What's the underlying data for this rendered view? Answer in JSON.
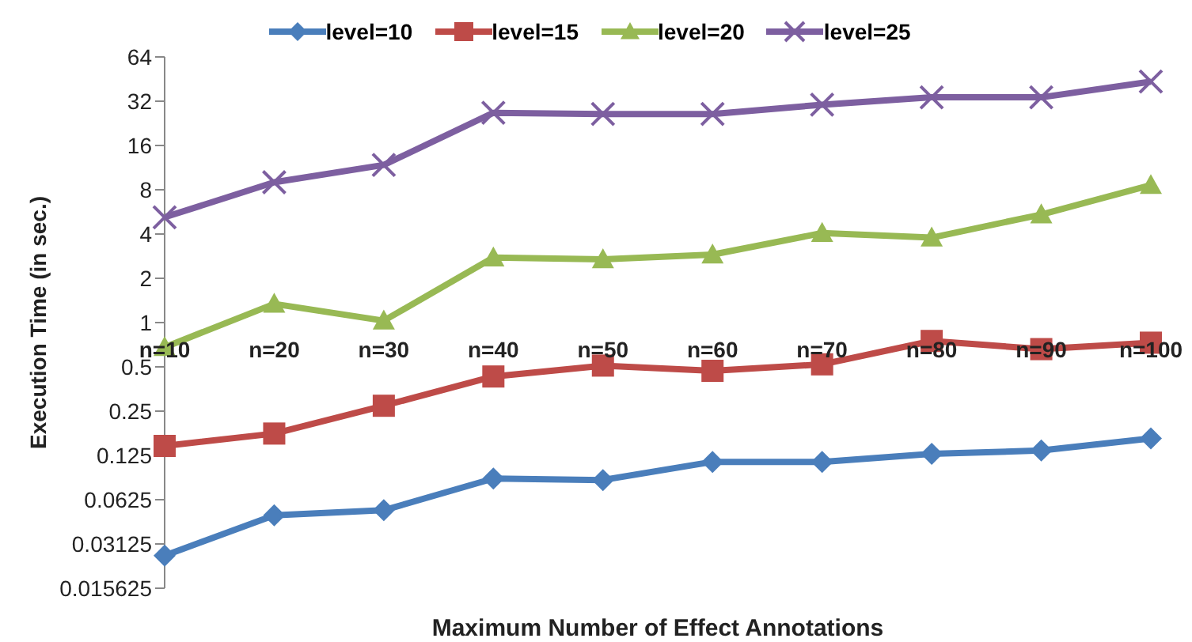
{
  "chart_data": {
    "type": "line",
    "xlabel": "Maximum Number of Effect Annotations",
    "ylabel": "Execution Time (in sec.)",
    "categories": [
      "n=10",
      "n=20",
      "n=30",
      "n=40",
      "n=50",
      "n=60",
      "n=70",
      "n=80",
      "n=90",
      "n=100"
    ],
    "log": true,
    "ylim": [
      0.015625,
      64
    ],
    "yticks": [
      0.015625,
      0.03125,
      0.0625,
      0.125,
      0.25,
      0.5,
      1,
      2,
      4,
      8,
      16,
      32,
      64
    ],
    "grid": false,
    "legend": "top",
    "series": [
      {
        "name": "level=10",
        "color": "#4a7ebb",
        "marker": "diamond",
        "values": [
          0.026,
          0.049,
          0.053,
          0.087,
          0.085,
          0.113,
          0.113,
          0.128,
          0.135,
          0.163
        ]
      },
      {
        "name": "level=15",
        "color": "#be4b48",
        "marker": "square",
        "values": [
          0.145,
          0.176,
          0.272,
          0.43,
          0.51,
          0.47,
          0.52,
          0.75,
          0.66,
          0.73
        ]
      },
      {
        "name": "level=20",
        "color": "#98b954",
        "marker": "triangle",
        "values": [
          0.68,
          1.34,
          1.03,
          2.77,
          2.69,
          2.9,
          4.06,
          3.78,
          5.43,
          8.6
        ]
      },
      {
        "name": "level=25",
        "color": "#7d5fa0",
        "marker": "cross",
        "values": [
          5.2,
          9.0,
          11.8,
          26.7,
          26.2,
          26.2,
          30.3,
          34,
          34,
          43.5
        ]
      }
    ]
  }
}
